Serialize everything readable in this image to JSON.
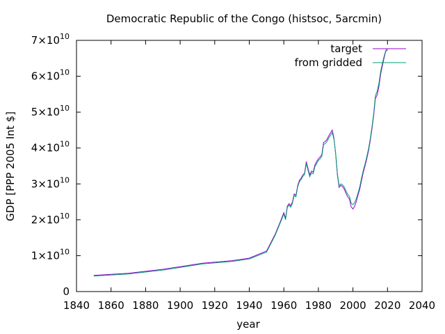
{
  "chart_data": {
    "type": "line",
    "title": "Democratic Republic of the Congo (histsoc, 5arcmin)",
    "xlabel": "year",
    "ylabel": "GDP [PPP 2005 Int $]",
    "xlim": [
      1840,
      2040
    ],
    "ylim": [
      0,
      70000000000
    ],
    "xticks": [
      "1840",
      "1860",
      "1880",
      "1900",
      "1920",
      "1940",
      "1960",
      "1980",
      "2000",
      "2020",
      "2040"
    ],
    "xtick_values": [
      1840,
      1860,
      1880,
      1900,
      1920,
      1940,
      1960,
      1980,
      2000,
      2020,
      2040
    ],
    "yticks": [
      {
        "value": 0,
        "mant": "0",
        "exp": ""
      },
      {
        "value": 10000000000,
        "mant": "1×10",
        "exp": "10"
      },
      {
        "value": 20000000000,
        "mant": "2×10",
        "exp": "10"
      },
      {
        "value": 30000000000,
        "mant": "3×10",
        "exp": "10"
      },
      {
        "value": 40000000000,
        "mant": "4×10",
        "exp": "10"
      },
      {
        "value": 50000000000,
        "mant": "5×10",
        "exp": "10"
      },
      {
        "value": 60000000000,
        "mant": "6×10",
        "exp": "10"
      },
      {
        "value": 70000000000,
        "mant": "7×10",
        "exp": "10"
      }
    ],
    "grid": false,
    "legend_position": "top-right",
    "series": [
      {
        "name": "target",
        "color": "#9400d3",
        "points": [
          [
            1850,
            4500000000.0
          ],
          [
            1870,
            5100000000.0
          ],
          [
            1890,
            6200000000.0
          ],
          [
            1913,
            7900000000.0
          ],
          [
            1930,
            8600000000.0
          ],
          [
            1940,
            9300000000.0
          ],
          [
            1950,
            11300000000.0
          ],
          [
            1955,
            16000000000.0
          ],
          [
            1958,
            19500000000.0
          ],
          [
            1960,
            22000000000.0
          ],
          [
            1961,
            20400000000.0
          ],
          [
            1962,
            23800000000.0
          ],
          [
            1963,
            24500000000.0
          ],
          [
            1964,
            23900000000.0
          ],
          [
            1965,
            25000000000.0
          ],
          [
            1966,
            27200000000.0
          ],
          [
            1967,
            26800000000.0
          ],
          [
            1968,
            29500000000.0
          ],
          [
            1969,
            31000000000.0
          ],
          [
            1970,
            31600000000.0
          ],
          [
            1971,
            32500000000.0
          ],
          [
            1972,
            33000000000.0
          ],
          [
            1973,
            36200000000.0
          ],
          [
            1974,
            34300000000.0
          ],
          [
            1975,
            32500000000.0
          ],
          [
            1976,
            33600000000.0
          ],
          [
            1977,
            33300000000.0
          ],
          [
            1978,
            35300000000.0
          ],
          [
            1979,
            36200000000.0
          ],
          [
            1980,
            37000000000.0
          ],
          [
            1981,
            37500000000.0
          ],
          [
            1982,
            38200000000.0
          ],
          [
            1983,
            41600000000.0
          ],
          [
            1984,
            41800000000.0
          ],
          [
            1985,
            42400000000.0
          ],
          [
            1986,
            43400000000.0
          ],
          [
            1987,
            44200000000.0
          ],
          [
            1988,
            45000000000.0
          ],
          [
            1989,
            42800000000.0
          ],
          [
            1990,
            38200000000.0
          ],
          [
            1991,
            32600000000.0
          ],
          [
            1992,
            29000000000.0
          ],
          [
            1993,
            29600000000.0
          ],
          [
            1994,
            29200000000.0
          ],
          [
            1995,
            28500000000.0
          ],
          [
            1996,
            27300000000.0
          ],
          [
            1997,
            26400000000.0
          ],
          [
            1998,
            25800000000.0
          ],
          [
            1999,
            23600000000.0
          ],
          [
            2000,
            23000000000.0
          ],
          [
            2001,
            23800000000.0
          ],
          [
            2002,
            25200000000.0
          ],
          [
            2003,
            27000000000.0
          ],
          [
            2004,
            28600000000.0
          ],
          [
            2005,
            31000000000.0
          ],
          [
            2006,
            33200000000.0
          ],
          [
            2007,
            35000000000.0
          ],
          [
            2008,
            37000000000.0
          ],
          [
            2009,
            39200000000.0
          ],
          [
            2010,
            42000000000.0
          ],
          [
            2011,
            45200000000.0
          ],
          [
            2012,
            49000000000.0
          ],
          [
            2013,
            53800000000.0
          ],
          [
            2014,
            54800000000.0
          ],
          [
            2015,
            57000000000.0
          ],
          [
            2016,
            60500000000.0
          ],
          [
            2017,
            62800000000.0
          ],
          [
            2018,
            65000000000.0
          ],
          [
            2019,
            67000000000.0
          ],
          [
            2020,
            67300000000.0
          ]
        ]
      },
      {
        "name": "from gridded",
        "color": "#009e73",
        "points": [
          [
            1850,
            4300000000.0
          ],
          [
            1870,
            4900000000.0
          ],
          [
            1890,
            6000000000.0
          ],
          [
            1913,
            7700000000.0
          ],
          [
            1930,
            8400000000.0
          ],
          [
            1940,
            9100000000.0
          ],
          [
            1950,
            11000000000.0
          ],
          [
            1955,
            15700000000.0
          ],
          [
            1958,
            19200000000.0
          ],
          [
            1960,
            21600000000.0
          ],
          [
            1961,
            20000000000.0
          ],
          [
            1962,
            23400000000.0
          ],
          [
            1963,
            24100000000.0
          ],
          [
            1964,
            23500000000.0
          ],
          [
            1965,
            24600000000.0
          ],
          [
            1966,
            26800000000.0
          ],
          [
            1967,
            26400000000.0
          ],
          [
            1968,
            29100000000.0
          ],
          [
            1969,
            30600000000.0
          ],
          [
            1970,
            31200000000.0
          ],
          [
            1971,
            32100000000.0
          ],
          [
            1972,
            32600000000.0
          ],
          [
            1973,
            35700000000.0
          ],
          [
            1974,
            33800000000.0
          ],
          [
            1975,
            32000000000.0
          ],
          [
            1976,
            33100000000.0
          ],
          [
            1977,
            32800000000.0
          ],
          [
            1978,
            34800000000.0
          ],
          [
            1979,
            35700000000.0
          ],
          [
            1980,
            36500000000.0
          ],
          [
            1981,
            37000000000.0
          ],
          [
            1982,
            37700000000.0
          ],
          [
            1983,
            41000000000.0
          ],
          [
            1984,
            41200000000.0
          ],
          [
            1985,
            41800000000.0
          ],
          [
            1986,
            42800000000.0
          ],
          [
            1987,
            43500000000.0
          ],
          [
            1988,
            44300000000.0
          ],
          [
            1989,
            42400000000.0
          ],
          [
            1990,
            38500000000.0
          ],
          [
            1991,
            33000000000.0
          ],
          [
            1992,
            29500000000.0
          ],
          [
            1993,
            30000000000.0
          ],
          [
            1994,
            29700000000.0
          ],
          [
            1995,
            29100000000.0
          ],
          [
            1996,
            28000000000.0
          ],
          [
            1997,
            27100000000.0
          ],
          [
            1998,
            26500000000.0
          ],
          [
            1999,
            24600000000.0
          ],
          [
            2000,
            24200000000.0
          ],
          [
            2001,
            24800000000.0
          ],
          [
            2002,
            26000000000.0
          ],
          [
            2003,
            27600000000.0
          ],
          [
            2004,
            29300000000.0
          ],
          [
            2005,
            31700000000.0
          ],
          [
            2006,
            33800000000.0
          ],
          [
            2007,
            35600000000.0
          ],
          [
            2008,
            37600000000.0
          ],
          [
            2009,
            39800000000.0
          ],
          [
            2010,
            42600000000.0
          ],
          [
            2011,
            45800000000.0
          ],
          [
            2012,
            49600000000.0
          ],
          [
            2013,
            54600000000.0
          ],
          [
            2014,
            55800000000.0
          ],
          [
            2015,
            58000000000.0
          ],
          [
            2016,
            61300000000.0
          ],
          [
            2017,
            63500000000.0
          ],
          [
            2018,
            65500000000.0
          ],
          [
            2019,
            67200000000.0
          ],
          [
            2020,
            67600000000.0
          ]
        ]
      }
    ]
  }
}
